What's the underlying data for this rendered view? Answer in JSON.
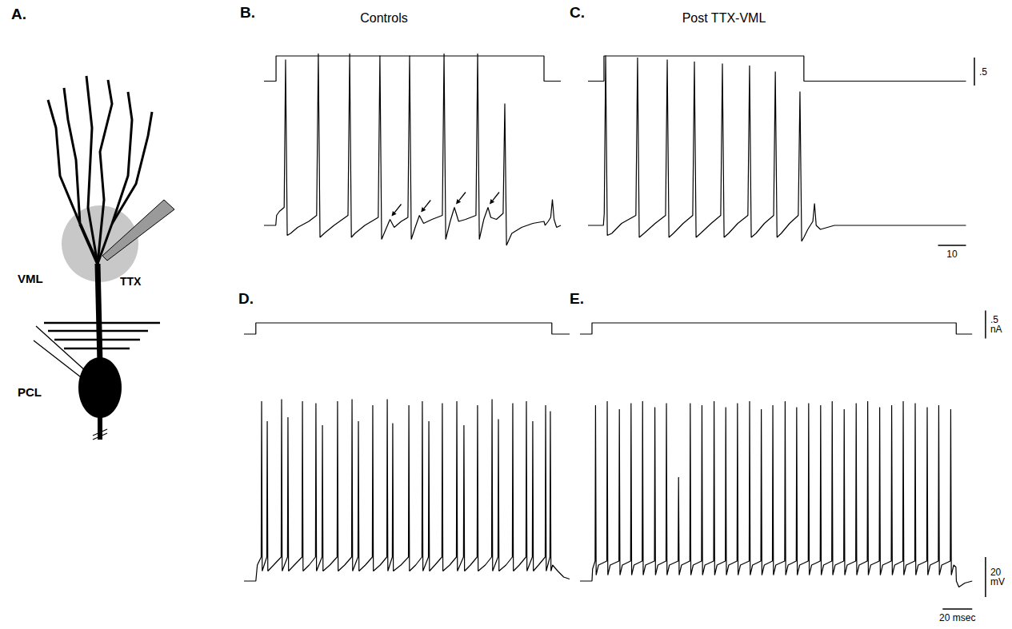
{
  "diagram": {
    "label": "A.",
    "region_label": "VML",
    "pipette_label": "TTX",
    "layer_label": "PCL"
  },
  "chart_data": [
    {
      "type": "line",
      "label": "B.",
      "title": "Controls",
      "color": "#000000",
      "tick_labels": false,
      "grid": false,
      "xlim": [
        0,
        106
      ],
      "current": {
        "ylim": [
          -0.1,
          0.6
        ],
        "x": [
          0,
          4.3,
          4.3,
          100,
          100,
          106
        ],
        "values": [
          0,
          0,
          0.45,
          0.45,
          0,
          0
        ]
      },
      "voltage": {
        "ylim": [
          -12,
          90
        ],
        "x": [
          0,
          4.2,
          4.5,
          5.5,
          7.2,
          7.7,
          8.3,
          9.5,
          12,
          16,
          18.8,
          19.4,
          20,
          21.5,
          25,
          30,
          30.6,
          31.2,
          32.5,
          36,
          40.8,
          41.4,
          42,
          43.5,
          45,
          46.5,
          49,
          51.4,
          52,
          52.6,
          54,
          55.5,
          57,
          60,
          63.7,
          64.3,
          64.9,
          66.5,
          68,
          69.5,
          72,
          75.7,
          76.3,
          76.9,
          78.5,
          80,
          81,
          83,
          85.4,
          86,
          86.6,
          88.5,
          92,
          96,
          100,
          100.4,
          101.5,
          102.4,
          103,
          103.6,
          104.5,
          106
        ],
        "values": [
          0,
          0,
          5,
          7,
          9,
          83,
          -5,
          -4,
          -1,
          2,
          5,
          86,
          -6,
          -4,
          0,
          5,
          86,
          -6,
          -4,
          0,
          4,
          85,
          -7,
          -2,
          3,
          -1,
          2,
          4,
          85,
          -7,
          -1,
          5,
          1,
          3,
          5,
          86,
          -7,
          2,
          9,
          2,
          3,
          5,
          86,
          -7,
          3,
          9,
          4,
          3,
          6,
          61,
          -10,
          -4,
          -1,
          1,
          2,
          0,
          2,
          4,
          13,
          3,
          -1,
          0
        ]
      },
      "arrows": {
        "x": [
          45,
          55.5,
          68,
          80
        ],
        "values": [
          3,
          5,
          9,
          9
        ]
      }
    },
    {
      "type": "line",
      "label": "C.",
      "title": "Post TTX-VML",
      "color": "#000000",
      "tick_labels": false,
      "grid": false,
      "xlim": [
        0,
        140
      ],
      "current": {
        "ylim": [
          -0.1,
          0.6
        ],
        "x": [
          0,
          5.7,
          5.7,
          77.1,
          77.1,
          135
        ],
        "values": [
          0,
          0,
          0.45,
          0.45,
          0,
          0
        ]
      },
      "voltage": {
        "ylim": [
          -12,
          90
        ],
        "x": [
          0,
          5.5,
          5.8,
          6.3,
          6.9,
          8.5,
          12,
          17.1,
          17.7,
          18.3,
          20,
          24,
          27.7,
          28.3,
          28.9,
          30.5,
          34,
          37.4,
          38,
          38.6,
          40.2,
          44,
          47.4,
          48,
          48.6,
          50.2,
          53.5,
          57.1,
          57.7,
          58.3,
          60,
          63,
          66.3,
          66.9,
          67.5,
          69,
          72,
          75.1,
          75.7,
          76.3,
          77.1,
          78.5,
          80.3,
          80.9,
          81.5,
          83,
          88,
          135
        ],
        "values": [
          0,
          0,
          6,
          85,
          -5,
          -4,
          1,
          5,
          84,
          -6,
          -4,
          1,
          5,
          83,
          -6,
          -4,
          1,
          5,
          82,
          -6,
          -4,
          1,
          5,
          81,
          -6,
          -4,
          1,
          5,
          80,
          -6,
          -4,
          1,
          5,
          77,
          -6,
          -4,
          1,
          5,
          67,
          -8,
          -6,
          -2,
          2,
          11,
          0,
          -2,
          0,
          0
        ]
      },
      "current_bar": {
        "value": 0.5,
        "label": ".5"
      },
      "time_bar": {
        "value": 10,
        "label": "10"
      }
    },
    {
      "type": "line",
      "label": "D.",
      "color": "#000000",
      "tick_labels": false,
      "grid": false,
      "xlim": [
        0,
        220
      ],
      "current": {
        "ylim": [
          -0.1,
          0.6
        ],
        "x": [
          0,
          8,
          8,
          208,
          208,
          220
        ],
        "values": [
          0,
          0,
          0.2,
          0.2,
          0,
          0
        ]
      },
      "voltage": {
        "ylim": [
          -16,
          100
        ],
        "x": [
          0,
          8,
          9,
          11.6,
          11.9,
          12.3,
          15.4,
          15.7,
          16.1,
          20,
          25.1,
          25.4,
          25.8,
          29.4,
          29.7,
          30.1,
          34,
          39.2,
          39.5,
          39.9,
          44,
          48.3,
          48.6,
          49,
          52.7,
          53,
          53.4,
          58,
          62.9,
          63.2,
          63.6,
          68,
          72.7,
          73,
          73.4,
          77,
          77.3,
          77.7,
          82,
          86.7,
          87,
          87.4,
          92,
          96.5,
          96.8,
          97.2,
          100.2,
          100.5,
          100.9,
          106,
          111.1,
          111.4,
          111.8,
          116,
          120.2,
          120.5,
          120.9,
          124.6,
          124.9,
          125.3,
          129,
          133.7,
          134,
          134.4,
          139,
          143.5,
          143.8,
          144.2,
          148.3,
          148.6,
          149,
          153,
          157.5,
          157.8,
          158.2,
          163,
          167.3,
          167.6,
          168,
          171.6,
          171.9,
          172.3,
          177,
          181.3,
          181.6,
          182,
          186,
          190.5,
          190.8,
          191.2,
          194.8,
          195.1,
          195.5,
          199,
          203.5,
          203.8,
          204.2,
          206.7,
          207,
          207.4,
          208.5,
          212,
          216,
          220
        ],
        "values": [
          0,
          0,
          8,
          12,
          90,
          5,
          12,
          80,
          5,
          8,
          12,
          91,
          5,
          12,
          82,
          5,
          8,
          12,
          90,
          5,
          8,
          12,
          89,
          5,
          12,
          78,
          5,
          8,
          12,
          90,
          5,
          8,
          12,
          91,
          5,
          12,
          80,
          5,
          8,
          12,
          88,
          5,
          8,
          12,
          91,
          5,
          12,
          79,
          5,
          8,
          12,
          88,
          5,
          8,
          12,
          90,
          5,
          12,
          80,
          5,
          8,
          12,
          89,
          5,
          8,
          12,
          90,
          5,
          12,
          78,
          5,
          8,
          12,
          88,
          5,
          8,
          12,
          91,
          5,
          12,
          81,
          5,
          8,
          12,
          89,
          5,
          8,
          12,
          90,
          5,
          12,
          80,
          5,
          8,
          12,
          88,
          5,
          12,
          85,
          5,
          8,
          5,
          2,
          1
        ]
      }
    },
    {
      "type": "line",
      "label": "E.",
      "color": "#000000",
      "tick_labels": false,
      "grid": false,
      "xlim": [
        0,
        276
      ],
      "current": {
        "ylim": [
          -0.1,
          0.6
        ],
        "x": [
          0,
          8.1,
          8.1,
          254.2,
          254.2,
          265
        ],
        "values": [
          0,
          0,
          0.2,
          0.2,
          0,
          0
        ]
      },
      "voltage": {
        "ylim": [
          -16,
          100
        ],
        "x": [
          0,
          8.1,
          8.5,
          10.2,
          10.5,
          10.9,
          12.5,
          18.1,
          18.4,
          18.8,
          20.4,
          26.3,
          26.6,
          27,
          28.6,
          34.2,
          34.5,
          34.9,
          36.5,
          42,
          42.3,
          42.7,
          44.3,
          50.3,
          50.6,
          51,
          52.6,
          58.1,
          58.4,
          58.8,
          60.4,
          66.3,
          66.6,
          67,
          68.6,
          74.2,
          74.5,
          74.9,
          76.5,
          82.1,
          82.4,
          82.8,
          84.4,
          90.3,
          90.6,
          91,
          92.6,
          98.2,
          98.5,
          98.9,
          100.5,
          106.1,
          106.4,
          106.8,
          108.4,
          114.3,
          114.6,
          115,
          116.6,
          122.2,
          122.5,
          122.9,
          124.5,
          130,
          130.3,
          130.7,
          132.3,
          138.3,
          138.6,
          139,
          140.6,
          146.1,
          146.4,
          146.8,
          148.4,
          154.2,
          154.5,
          154.9,
          156.5,
          162.3,
          162.6,
          163,
          164.6,
          170.1,
          170.4,
          170.8,
          172.4,
          178.2,
          178.5,
          178.9,
          180.5,
          186.3,
          186.6,
          187,
          188.6,
          194.1,
          194.4,
          194.8,
          196.4,
          202.2,
          202.5,
          202.9,
          204.5,
          210.3,
          210.6,
          211,
          212.6,
          218.1,
          218.4,
          218.8,
          220.4,
          226.2,
          226.5,
          226.9,
          228.5,
          234.3,
          234.6,
          235,
          236.6,
          242.1,
          242.4,
          242.8,
          244.4,
          250.2,
          250.5,
          250.9,
          252.5,
          254,
          254.3,
          256,
          260,
          265
        ],
        "values": [
          0,
          0,
          6,
          10,
          88,
          3,
          8,
          10,
          90,
          3,
          8,
          10,
          86,
          3,
          8,
          10,
          89,
          3,
          8,
          10,
          90,
          3,
          8,
          10,
          87,
          3,
          8,
          10,
          89,
          3,
          8,
          10,
          52,
          3,
          8,
          10,
          89,
          3,
          8,
          10,
          88,
          3,
          8,
          10,
          90,
          3,
          8,
          10,
          87,
          3,
          8,
          10,
          89,
          3,
          8,
          10,
          90,
          3,
          8,
          10,
          86,
          3,
          8,
          10,
          88,
          3,
          8,
          10,
          90,
          3,
          8,
          10,
          87,
          3,
          8,
          10,
          89,
          3,
          8,
          10,
          88,
          3,
          8,
          10,
          90,
          3,
          8,
          10,
          86,
          3,
          8,
          10,
          89,
          3,
          8,
          10,
          90,
          3,
          8,
          10,
          87,
          3,
          8,
          10,
          88,
          3,
          8,
          10,
          90,
          3,
          8,
          10,
          89,
          3,
          8,
          10,
          87,
          3,
          8,
          10,
          88,
          3,
          8,
          10,
          86,
          3,
          8,
          7,
          0,
          -3,
          -1,
          0
        ]
      },
      "current_bar": {
        "value": 0.5,
        "label": ".5",
        "unit": "nA"
      },
      "voltage_bar": {
        "value": 20,
        "label": "20",
        "unit": "mV"
      },
      "time_bar": {
        "value": 20,
        "label": "20",
        "unit": "msec"
      }
    }
  ]
}
